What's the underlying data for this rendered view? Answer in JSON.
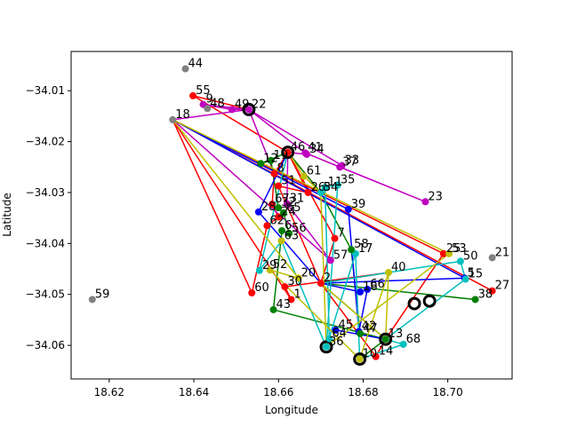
{
  "chart_data": {
    "type": "scatter",
    "title": "",
    "xlabel": "Longitude",
    "ylabel": "Latitude",
    "xlim": [
      18.611,
      18.7152
    ],
    "ylim": [
      -34.0666,
      -34.0023
    ],
    "xticks": [
      18.62,
      18.64,
      18.66,
      18.68,
      18.7
    ],
    "yticks": [
      -34.06,
      -34.05,
      -34.04,
      -34.03,
      -34.02,
      -34.01
    ],
    "xtick_labels": [
      "18.62",
      "18.64",
      "18.66",
      "18.68",
      "18.70"
    ],
    "ytick_labels": [
      "−34.06",
      "−34.05",
      "−34.04",
      "−34.03",
      "−34.02",
      "−34.01"
    ],
    "grid": false,
    "legend": false,
    "depots": [
      {
        "id": "22",
        "x": 18.653,
        "y": -34.0137
      },
      {
        "id": "46",
        "x": 18.6622,
        "y": -34.0221
      },
      {
        "id": "2",
        "x": 18.6921,
        "y": -34.0518
      },
      {
        "id": "18",
        "x": 18.6957,
        "y": -34.0513
      },
      {
        "id": "13",
        "x": 18.6853,
        "y": -34.0588
      },
      {
        "id": "36",
        "x": 18.6713,
        "y": -34.0603
      },
      {
        "id": "10",
        "x": 18.6792,
        "y": -34.0627
      }
    ],
    "points": [
      {
        "label": "1",
        "x": 18.663,
        "y": -34.051,
        "color": "#ff0000"
      },
      {
        "label": "2",
        "x": 18.67,
        "y": -34.0478,
        "color": "#ff0000"
      },
      {
        "label": "3",
        "x": 18.67,
        "y": -34.03,
        "color": "#008000"
      },
      {
        "label": "5",
        "x": 18.704,
        "y": -34.0468,
        "color": "#0000ff"
      },
      {
        "label": "6",
        "x": 18.6608,
        "y": -34.0375,
        "color": "#008000"
      },
      {
        "label": "7",
        "x": 18.6733,
        "y": -34.039,
        "color": "#ff0000"
      },
      {
        "label": "8",
        "x": 18.659,
        "y": -34.0263,
        "color": "#ff0000"
      },
      {
        "label": "9",
        "x": 18.6422,
        "y": -34.0127,
        "color": "#bf00bf"
      },
      {
        "label": "10",
        "x": 18.6792,
        "y": -34.0627,
        "color": "#bfbf00"
      },
      {
        "label": "11",
        "x": 18.671,
        "y": -34.029,
        "color": "#00bfbf"
      },
      {
        "label": "12",
        "x": 18.6558,
        "y": -34.0243,
        "color": "#008000"
      },
      {
        "label": "13",
        "x": 18.6853,
        "y": -34.0588,
        "color": "#008000"
      },
      {
        "label": "14",
        "x": 18.683,
        "y": -34.0622,
        "color": "#ff0000"
      },
      {
        "label": "15",
        "x": 18.7042,
        "y": -34.047,
        "color": "#00bfbf"
      },
      {
        "label": "16",
        "x": 18.6793,
        "y": -34.0495,
        "color": "#0000ff"
      },
      {
        "label": "17",
        "x": 18.6782,
        "y": -34.042,
        "color": "#00bfbf"
      },
      {
        "label": "18",
        "x": 18.635,
        "y": -34.0157,
        "color": "#808080"
      },
      {
        "label": "19",
        "x": 18.6582,
        "y": -34.0237,
        "color": "#008000"
      },
      {
        "label": "20",
        "x": 18.6647,
        "y": -34.0468,
        "color": "#bfbf00"
      },
      {
        "label": "21",
        "x": 18.7105,
        "y": -34.0428,
        "color": "#808080"
      },
      {
        "label": "22",
        "x": 18.653,
        "y": -34.0137,
        "color": "#bf00bf"
      },
      {
        "label": "23",
        "x": 18.6947,
        "y": -34.0318,
        "color": "#bf00bf"
      },
      {
        "label": "24",
        "x": 18.66,
        "y": -34.0348,
        "color": "#ff0000"
      },
      {
        "label": "25",
        "x": 18.699,
        "y": -34.042,
        "color": "#ff0000"
      },
      {
        "label": "26",
        "x": 18.667,
        "y": -34.03,
        "color": "#ff0000"
      },
      {
        "label": "27",
        "x": 18.7105,
        "y": -34.0493,
        "color": "#ff0000"
      },
      {
        "label": "28",
        "x": 18.6553,
        "y": -34.0338,
        "color": "#0000ff"
      },
      {
        "label": "29",
        "x": 18.6555,
        "y": -34.0453,
        "color": "#00bfbf"
      },
      {
        "label": "30",
        "x": 18.6615,
        "y": -34.0485,
        "color": "#ff0000"
      },
      {
        "label": "31",
        "x": 18.662,
        "y": -34.0322,
        "color": "#bf00bf"
      },
      {
        "label": "32",
        "x": 18.66,
        "y": -34.033,
        "color": "#008000"
      },
      {
        "label": "33",
        "x": 18.675,
        "y": -34.0247,
        "color": "#bf00bf"
      },
      {
        "label": "34",
        "x": 18.6667,
        "y": -34.0225,
        "color": "#bf00bf"
      },
      {
        "label": "35",
        "x": 18.674,
        "y": -34.0285,
        "color": "#00bfbf"
      },
      {
        "label": "36",
        "x": 18.6713,
        "y": -34.0603,
        "color": "#00bfbf"
      },
      {
        "label": "37",
        "x": 18.6745,
        "y": -34.025,
        "color": "#bf00bf"
      },
      {
        "label": "38",
        "x": 18.7065,
        "y": -34.051,
        "color": "#008000"
      },
      {
        "label": "39",
        "x": 18.6765,
        "y": -34.0333,
        "color": "#0000ff"
      },
      {
        "label": "40",
        "x": 18.686,
        "y": -34.0457,
        "color": "#bfbf00"
      },
      {
        "label": "41",
        "x": 18.6663,
        "y": -34.0222,
        "color": "#bf00bf"
      },
      {
        "label": "42",
        "x": 18.679,
        "y": -34.0573,
        "color": "#0000ff"
      },
      {
        "label": "43",
        "x": 18.6588,
        "y": -34.053,
        "color": "#008000"
      },
      {
        "label": "44",
        "x": 18.638,
        "y": -34.0057,
        "color": "#808080"
      },
      {
        "label": "45",
        "x": 18.6735,
        "y": -34.057,
        "color": "#0000ff"
      },
      {
        "label": "46",
        "x": 18.6622,
        "y": -34.0221,
        "color": "#ff0000"
      },
      {
        "label": "47",
        "x": 18.6793,
        "y": -34.0577,
        "color": "#008000"
      },
      {
        "label": "48",
        "x": 18.6432,
        "y": -34.0135,
        "color": "#808080"
      },
      {
        "label": "49",
        "x": 18.649,
        "y": -34.0137,
        "color": "#bf00bf"
      },
      {
        "label": "50",
        "x": 18.703,
        "y": -34.0435,
        "color": "#00bfbf"
      },
      {
        "label": "51",
        "x": 18.66,
        "y": -34.0287,
        "color": "#ff0000"
      },
      {
        "label": "52",
        "x": 18.658,
        "y": -34.0452,
        "color": "#bfbf00"
      },
      {
        "label": "53",
        "x": 18.7003,
        "y": -34.042,
        "color": "#bfbf00"
      },
      {
        "label": "54",
        "x": 18.67,
        "y": -34.03,
        "color": "#00bfbf"
      },
      {
        "label": "55",
        "x": 18.6398,
        "y": -34.011,
        "color": "#ff0000"
      },
      {
        "label": "56",
        "x": 18.6625,
        "y": -34.038,
        "color": "#008000"
      },
      {
        "label": "57",
        "x": 18.6723,
        "y": -34.0433,
        "color": "#bf00bf"
      },
      {
        "label": "58",
        "x": 18.6772,
        "y": -34.0412,
        "color": "#008000"
      },
      {
        "label": "59",
        "x": 18.616,
        "y": -34.051,
        "color": "#808080"
      },
      {
        "label": "60",
        "x": 18.6537,
        "y": -34.0497,
        "color": "#ff0000"
      },
      {
        "label": "61",
        "x": 18.666,
        "y": -34.0268,
        "color": "#bfbf00"
      },
      {
        "label": "62",
        "x": 18.6573,
        "y": -34.0365,
        "color": "#ff0000"
      },
      {
        "label": "63",
        "x": 18.6607,
        "y": -34.0395,
        "color": "#bfbf00"
      },
      {
        "label": "64",
        "x": 18.672,
        "y": -34.0587,
        "color": "#00bfbf"
      },
      {
        "label": "65",
        "x": 18.6612,
        "y": -34.034,
        "color": "#008000"
      },
      {
        "label": "66",
        "x": 18.681,
        "y": -34.049,
        "color": "#0000ff"
      },
      {
        "label": "67",
        "x": 18.6585,
        "y": -34.0323,
        "color": "#ff0000"
      },
      {
        "label": "68",
        "x": 18.6895,
        "y": -34.0598,
        "color": "#00bfbf"
      }
    ],
    "routes": [
      {
        "color": "#ff0000",
        "path": [
          "46",
          "8",
          "67",
          "24",
          "62",
          "60",
          "18",
          "1",
          "30",
          "40",
          "2",
          "51",
          "26",
          "46"
        ]
      },
      {
        "color": "#ff0000",
        "path": [
          "22",
          "55",
          "46",
          "7",
          "2",
          "14",
          "13",
          "25",
          "18",
          "27",
          "18",
          "3",
          "46"
        ]
      },
      {
        "color": "#bf00bf",
        "path": [
          "22",
          "9",
          "49",
          "22",
          "41",
          "37",
          "23",
          "41",
          "34",
          "46",
          "31",
          "57",
          "18",
          "22",
          "8",
          "22"
        ]
      },
      {
        "color": "#bf00bf",
        "path": [
          "22",
          "33",
          "22"
        ]
      },
      {
        "color": "#008000",
        "path": [
          "46",
          "12",
          "19",
          "32",
          "65",
          "56",
          "6",
          "43",
          "13",
          "47",
          "58",
          "3",
          "46"
        ]
      },
      {
        "color": "#008000",
        "path": [
          "2",
          "38",
          "2",
          "13",
          "10"
        ]
      },
      {
        "color": "#0000ff",
        "path": [
          "46",
          "28",
          "2",
          "16",
          "66",
          "42",
          "39",
          "18",
          "5",
          "2"
        ]
      },
      {
        "color": "#0000ff",
        "path": [
          "45",
          "13"
        ]
      },
      {
        "color": "#00bfbf",
        "path": [
          "46",
          "29",
          "63",
          "36",
          "64",
          "11",
          "35",
          "36",
          "17",
          "10",
          "68",
          "13",
          "15",
          "50",
          "2"
        ]
      },
      {
        "color": "#bfbf00",
        "path": [
          "46",
          "61",
          "54",
          "36",
          "53",
          "18",
          "20",
          "52",
          "10",
          "40",
          "13",
          "2"
        ]
      }
    ]
  }
}
